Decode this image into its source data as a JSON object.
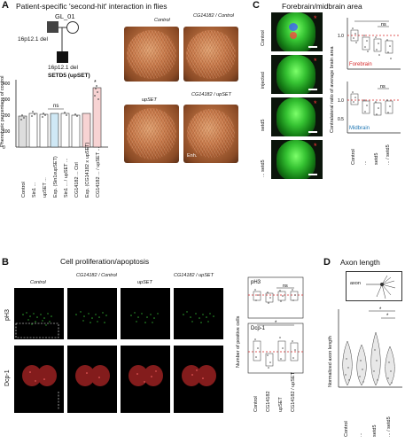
{
  "panelA": {
    "label": "A",
    "title": "Patient-specific 'second-hit' interaction in flies",
    "pedigree": {
      "proband": "GL_01",
      "parent_variant": "16p12.1 del",
      "child_variant": "16p12.1 del",
      "second_hit": "SETD5 (upSET)"
    },
    "chart": {
      "ylabel": "Phenotypic percentage of control",
      "sig_ns": "ns",
      "star": "*",
      "tick_labels": [
        "0",
        "100",
        "200",
        "300",
        "400"
      ]
    },
    "xlabels": [
      "Control",
      "Sin1 ...",
      "upSET ...",
      "Exp. (Sin1xupSET)",
      "Sin1 ... / upSET ...",
      "CG14182 ... Ctrl",
      "Exp. (CG14182 x upSET)",
      "CG14182 ... / upSET ..."
    ],
    "photos": {
      "control": "Control",
      "cg_control": "CG14182 / Control",
      "upset": "upSET",
      "cg_upset": "CG14182 / upSET",
      "enh": "Enh."
    }
  },
  "panelB": {
    "label": "B",
    "title": "Cell proliferation/apoptosis",
    "columns": [
      "Control",
      "CG14182 / Control",
      "upSET",
      "CG14182 / upSET"
    ],
    "rows": [
      "pH3",
      "Dcp-1"
    ],
    "plot": {
      "ylabel": "Number of positive cells",
      "pH3_label": "pH3",
      "dcp_label": "Dcp-1",
      "sig_ns": "ns",
      "star": "*",
      "xlabels": [
        "Control",
        "CG14182",
        "upSET",
        "CG14182 / upSET"
      ]
    }
  },
  "panelC": {
    "label": "C",
    "title": "Forebrain/midbrain area",
    "rows": [
      "Control",
      "...",
      "setd5",
      "... / setd5"
    ],
    "row_labels": [
      "Control",
      "injected",
      "setd5",
      "... setd5"
    ],
    "stars": [
      "*",
      "*",
      "*",
      "*"
    ],
    "plot": {
      "ylabel": "Contralateral ratio of average brain area",
      "forebrain": "Forebrain",
      "midbrain": "Midbrain",
      "sig_ns": "ns",
      "ticks": [
        "1.0",
        "0.5"
      ],
      "xlabels": [
        "Control",
        "...",
        "setd5",
        "... / setd5"
      ]
    },
    "colors": {
      "forebrain": "#d62728",
      "midbrain": "#1f77b4"
    }
  },
  "panelD": {
    "label": "D",
    "title": "Axon length",
    "inset_label": "axon",
    "ylabel": "Normalized axon length",
    "star": "*",
    "xlabels": [
      "Control",
      "...",
      "setd5",
      "... / setd5"
    ]
  }
}
